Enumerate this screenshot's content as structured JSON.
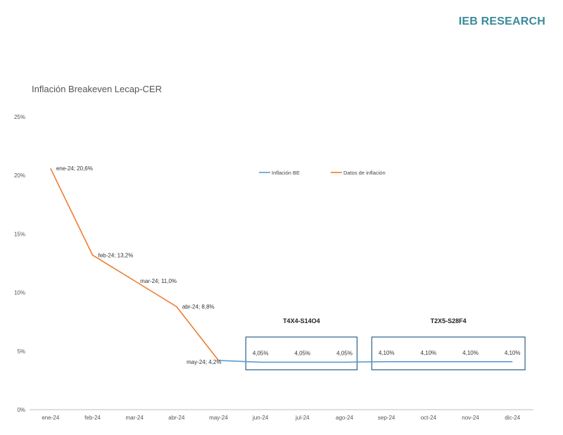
{
  "header": {
    "brand": "IEB RESEARCH"
  },
  "chart_data": {
    "type": "line",
    "title": "Inflación Breakeven Lecap-CER",
    "xlabel": "",
    "ylabel": "",
    "categories": [
      "ene-24",
      "feb-24",
      "mar-24",
      "abr-24",
      "may-24",
      "jun-24",
      "jul-24",
      "ago-24",
      "sep-24",
      "oct-24",
      "nov-24",
      "dic-24"
    ],
    "ylim": [
      0,
      25
    ],
    "yticks": [
      0,
      5,
      10,
      15,
      20,
      25
    ],
    "ytick_labels": [
      "0%",
      "5%",
      "10%",
      "15%",
      "20%",
      "25%"
    ],
    "legend_position": "top-center",
    "grid": false,
    "series": [
      {
        "name": "Inflación BE",
        "color": "#5b9bd5",
        "values": [
          null,
          null,
          null,
          null,
          4.2,
          4.05,
          4.05,
          4.05,
          4.1,
          4.1,
          4.1,
          4.1
        ],
        "data_labels": [
          "",
          "",
          "",
          "",
          "",
          "4,05%",
          "4,05%",
          "4,05%",
          "4,10%",
          "4,10%",
          "4,10%",
          "4,10%"
        ]
      },
      {
        "name": "Datos de inflación",
        "color": "#ed7d31",
        "values": [
          20.6,
          13.2,
          11.0,
          8.8,
          4.2,
          null,
          null,
          null,
          null,
          null,
          null,
          null
        ],
        "data_labels": [
          "ene-24; 20,6%",
          "feb-24; 13,2%",
          "mar-24; 11,0%",
          "abr-24; 8,8%",
          "may-24; 4,2%",
          "",
          "",
          "",
          "",
          "",
          "",
          ""
        ]
      }
    ],
    "annotations": [
      {
        "label": "T4X4-S14O4",
        "from_category": "jun-24",
        "to_category": "ago-24",
        "color": "#2f5f8a"
      },
      {
        "label": "T2X5-S28F4",
        "from_category": "sep-24",
        "to_category": "dic-24",
        "color": "#2f5f8a"
      }
    ]
  }
}
